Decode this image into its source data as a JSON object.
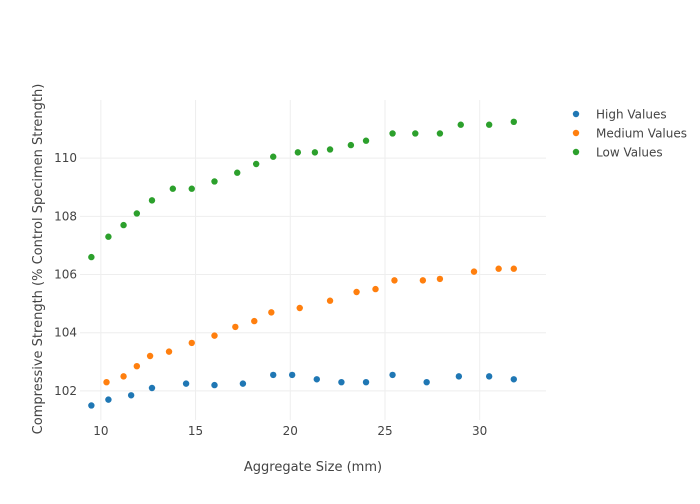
{
  "chart_data": {
    "type": "scatter",
    "title": "",
    "xlabel": "Aggregate Size (mm)",
    "ylabel": "Compressive Strength (% Control Specimen Strength)",
    "xlim": [
      8.9,
      33.5
    ],
    "ylim": [
      101.0,
      112.0
    ],
    "xticks": [
      10,
      15,
      20,
      25,
      30
    ],
    "yticks": [
      102,
      104,
      106,
      108,
      110
    ],
    "grid": true,
    "legend_position": "top-right",
    "series": [
      {
        "name": "High Values",
        "color": "#1f77b4",
        "x": [
          9.5,
          10.4,
          11.6,
          12.7,
          14.5,
          16.0,
          17.5,
          19.1,
          20.1,
          21.4,
          22.7,
          24.0,
          25.4,
          27.2,
          28.9,
          30.5,
          31.8
        ],
        "y": [
          101.5,
          101.7,
          101.85,
          102.1,
          102.25,
          102.2,
          102.25,
          102.55,
          102.55,
          102.4,
          102.3,
          102.3,
          102.55,
          102.3,
          102.5,
          102.5,
          102.4
        ]
      },
      {
        "name": "Medium Values",
        "color": "#ff7f0e",
        "x": [
          10.3,
          11.2,
          11.9,
          12.6,
          13.6,
          14.8,
          16.0,
          17.1,
          18.1,
          19.0,
          20.5,
          22.1,
          23.5,
          24.5,
          25.5,
          27.0,
          27.9,
          29.7,
          31.0,
          31.8
        ],
        "y": [
          102.3,
          102.5,
          102.85,
          103.2,
          103.35,
          103.65,
          103.9,
          104.2,
          104.4,
          104.7,
          104.85,
          105.1,
          105.4,
          105.5,
          105.8,
          105.8,
          105.85,
          106.1,
          106.2,
          106.2
        ],
        "label_color": "#444444"
      },
      {
        "name": "Low Values",
        "color": "#2ca02c",
        "x": [
          9.5,
          10.4,
          11.2,
          11.9,
          12.7,
          13.8,
          14.8,
          16.0,
          17.2,
          18.2,
          19.1,
          20.4,
          21.3,
          22.1,
          23.2,
          24.0,
          25.4,
          26.6,
          27.9,
          29.0,
          30.5,
          31.8
        ],
        "y": [
          106.6,
          107.3,
          107.7,
          108.1,
          108.55,
          108.95,
          108.95,
          109.2,
          109.5,
          109.8,
          110.05,
          110.2,
          110.2,
          110.3,
          110.45,
          110.6,
          110.85,
          110.85,
          110.85,
          111.15,
          111.15,
          111.25
        ]
      }
    ]
  }
}
